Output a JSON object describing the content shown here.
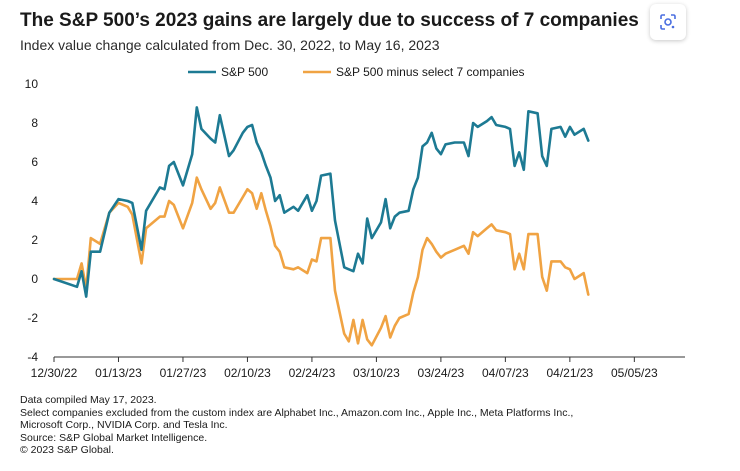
{
  "header": {
    "title": "The S&P 500’s 2023 gains are largely due to success of 7 companies",
    "subtitle": "Index value change calculated from Dec. 30, 2022, to May 16, 2023"
  },
  "lens_icon": "google-lens-icon",
  "chart_data": {
    "type": "line",
    "title": "The S&P 500’s 2023 gains are largely due to success of 7 companies",
    "subtitle": "Index value change calculated from Dec. 30, 2022, to May 16, 2023",
    "xlabel": "",
    "ylabel": "",
    "ylim": [
      -4,
      10
    ],
    "yticks": [
      10,
      8,
      6,
      4,
      2,
      0,
      -2,
      -4
    ],
    "xlim": [
      "2022-12-30",
      "2023-05-16"
    ],
    "x_tick_labels": [
      "12/30/22",
      "01/13/23",
      "01/27/23",
      "02/10/23",
      "02/24/23",
      "03/10/23",
      "03/24/23",
      "04/07/23",
      "04/21/23",
      "05/05/23"
    ],
    "grid": false,
    "legend_position": "top-center",
    "series": [
      {
        "name": "S&P 500",
        "color": "#1d7a93",
        "points": [
          [
            0,
            0
          ],
          [
            5,
            -0.4
          ],
          [
            6,
            0.4
          ],
          [
            7,
            -0.9
          ],
          [
            8,
            1.4
          ],
          [
            10,
            1.4
          ],
          [
            12,
            3.4
          ],
          [
            14,
            4.1
          ],
          [
            16,
            4.0
          ],
          [
            17,
            3.9
          ],
          [
            19,
            1.5
          ],
          [
            20,
            3.5
          ],
          [
            23,
            4.7
          ],
          [
            24,
            4.6
          ],
          [
            25,
            5.8
          ],
          [
            26,
            6.0
          ],
          [
            28,
            4.8
          ],
          [
            30,
            6.4
          ],
          [
            31,
            8.8
          ],
          [
            32,
            7.7
          ],
          [
            34,
            7.2
          ],
          [
            35,
            7.0
          ],
          [
            36,
            8.4
          ],
          [
            38,
            6.3
          ],
          [
            39,
            6.6
          ],
          [
            41,
            7.5
          ],
          [
            42,
            7.8
          ],
          [
            43,
            7.9
          ],
          [
            44,
            7.0
          ],
          [
            45,
            6.5
          ],
          [
            46,
            5.8
          ],
          [
            47,
            5.2
          ],
          [
            48,
            4.0
          ],
          [
            49,
            4.3
          ],
          [
            50,
            3.4
          ],
          [
            52,
            3.7
          ],
          [
            53,
            3.5
          ],
          [
            55,
            4.3
          ],
          [
            56,
            3.5
          ],
          [
            57,
            4.0
          ],
          [
            58,
            5.3
          ],
          [
            60,
            5.4
          ],
          [
            61,
            3.0
          ],
          [
            63,
            0.6
          ],
          [
            64,
            0.5
          ],
          [
            65,
            0.4
          ],
          [
            66,
            1.3
          ],
          [
            67,
            0.8
          ],
          [
            68,
            3.1
          ],
          [
            69,
            2.1
          ],
          [
            71,
            2.9
          ],
          [
            72,
            4.1
          ],
          [
            73,
            2.6
          ],
          [
            74,
            3.2
          ],
          [
            75,
            3.4
          ],
          [
            77,
            3.5
          ],
          [
            78,
            4.6
          ],
          [
            79,
            5.2
          ],
          [
            80,
            6.8
          ],
          [
            81,
            7.0
          ],
          [
            82,
            7.5
          ],
          [
            83,
            6.7
          ],
          [
            84,
            6.4
          ],
          [
            85,
            6.9
          ],
          [
            87,
            7.0
          ],
          [
            89,
            7.0
          ],
          [
            90,
            6.3
          ],
          [
            91,
            8.0
          ],
          [
            92,
            7.8
          ],
          [
            94,
            8.1
          ],
          [
            95,
            8.3
          ],
          [
            96,
            7.9
          ],
          [
            98,
            7.8
          ],
          [
            99,
            7.7
          ],
          [
            100,
            5.8
          ],
          [
            101,
            6.5
          ],
          [
            102,
            5.6
          ],
          [
            103,
            8.6
          ],
          [
            105,
            8.5
          ],
          [
            106,
            6.3
          ],
          [
            107,
            5.8
          ],
          [
            108,
            7.7
          ],
          [
            110,
            7.8
          ],
          [
            111,
            7.3
          ],
          [
            112,
            7.8
          ],
          [
            113,
            7.4
          ],
          [
            115,
            7.7
          ],
          [
            116,
            7.1
          ]
        ]
      },
      {
        "name": "S&P 500 minus select 7 companies",
        "color": "#f0a343",
        "points": [
          [
            0,
            0
          ],
          [
            5,
            0
          ],
          [
            6,
            0.8
          ],
          [
            7,
            -0.5
          ],
          [
            8,
            2.1
          ],
          [
            10,
            1.8
          ],
          [
            12,
            3.4
          ],
          [
            14,
            3.9
          ],
          [
            16,
            3.7
          ],
          [
            17,
            3.3
          ],
          [
            19,
            0.8
          ],
          [
            20,
            2.6
          ],
          [
            23,
            3.2
          ],
          [
            24,
            3.2
          ],
          [
            25,
            4.0
          ],
          [
            26,
            3.8
          ],
          [
            28,
            2.6
          ],
          [
            30,
            3.9
          ],
          [
            31,
            5.2
          ],
          [
            32,
            4.6
          ],
          [
            34,
            3.6
          ],
          [
            35,
            3.9
          ],
          [
            36,
            4.7
          ],
          [
            38,
            3.4
          ],
          [
            39,
            3.4
          ],
          [
            41,
            4.2
          ],
          [
            42,
            4.6
          ],
          [
            43,
            4.4
          ],
          [
            44,
            3.6
          ],
          [
            45,
            4.4
          ],
          [
            46,
            3.5
          ],
          [
            47,
            2.7
          ],
          [
            48,
            1.7
          ],
          [
            49,
            1.4
          ],
          [
            50,
            0.6
          ],
          [
            52,
            0.5
          ],
          [
            53,
            0.6
          ],
          [
            55,
            0.3
          ],
          [
            56,
            1.0
          ],
          [
            57,
            0.9
          ],
          [
            58,
            2.1
          ],
          [
            60,
            2.1
          ],
          [
            61,
            -0.6
          ],
          [
            63,
            -2.8
          ],
          [
            64,
            -3.2
          ],
          [
            65,
            -2.1
          ],
          [
            66,
            -3.3
          ],
          [
            67,
            -2.1
          ],
          [
            68,
            -3.1
          ],
          [
            69,
            -3.4
          ],
          [
            71,
            -2.5
          ],
          [
            72,
            -1.9
          ],
          [
            73,
            -3.0
          ],
          [
            74,
            -2.4
          ],
          [
            75,
            -2.0
          ],
          [
            77,
            -1.8
          ],
          [
            78,
            -0.7
          ],
          [
            79,
            0.1
          ],
          [
            80,
            1.5
          ],
          [
            81,
            2.1
          ],
          [
            82,
            1.8
          ],
          [
            83,
            1.4
          ],
          [
            84,
            1.1
          ],
          [
            85,
            1.3
          ],
          [
            87,
            1.5
          ],
          [
            89,
            1.7
          ],
          [
            90,
            1.3
          ],
          [
            91,
            2.4
          ],
          [
            92,
            2.2
          ],
          [
            94,
            2.6
          ],
          [
            95,
            2.8
          ],
          [
            96,
            2.5
          ],
          [
            98,
            2.4
          ],
          [
            99,
            2.3
          ],
          [
            100,
            0.5
          ],
          [
            101,
            1.3
          ],
          [
            102,
            0.5
          ],
          [
            103,
            2.3
          ],
          [
            105,
            2.3
          ],
          [
            106,
            0.1
          ],
          [
            107,
            -0.6
          ],
          [
            108,
            0.9
          ],
          [
            110,
            0.9
          ],
          [
            111,
            0.6
          ],
          [
            112,
            0.5
          ],
          [
            113,
            0
          ],
          [
            115,
            0.3
          ],
          [
            116,
            -0.8
          ]
        ]
      }
    ]
  },
  "footnotes": {
    "compiled": "Data compiled May 17, 2023.",
    "select_line1": "Select companies excluded from the custom index are Alphabet Inc., Amazon.com Inc., Apple Inc., Meta Platforms Inc.,",
    "select_line2": "Microsoft Corp., NVIDIA Corp. and Tesla Inc.",
    "source": "Source: S&P Global Market Intelligence.",
    "copyright": "© 2023 S&P Global."
  }
}
